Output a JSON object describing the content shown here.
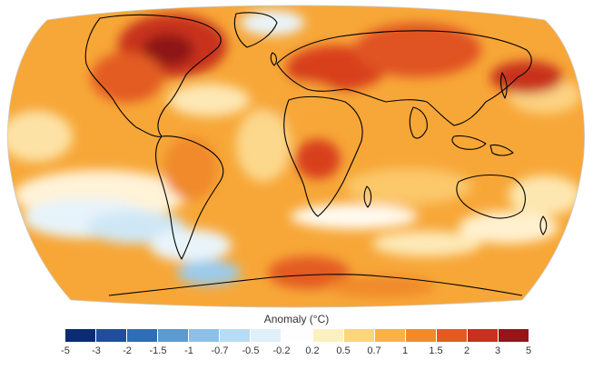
{
  "map": {
    "projection": "robinson-like",
    "base_color": "#f7a738",
    "land_outline_color": "#000000"
  },
  "legend": {
    "title": "Anomaly (°C)",
    "ticks": [
      "-5",
      "-3",
      "-2",
      "-1.5",
      "-1",
      "-0.7",
      "-0.5",
      "-0.2",
      "0.2",
      "0.5",
      "0.7",
      "1",
      "1.5",
      "2",
      "3",
      "5"
    ],
    "colors": [
      "#0b2c73",
      "#1f4f9a",
      "#2f6eb3",
      "#5b9bd0",
      "#8cc0e6",
      "#b7dcf3",
      "#dff0fa",
      "#fefefe",
      "#fdf0c0",
      "#fcd57c",
      "#f9b246",
      "#f28a2a",
      "#e35b22",
      "#c8301f",
      "#97141a"
    ]
  }
}
